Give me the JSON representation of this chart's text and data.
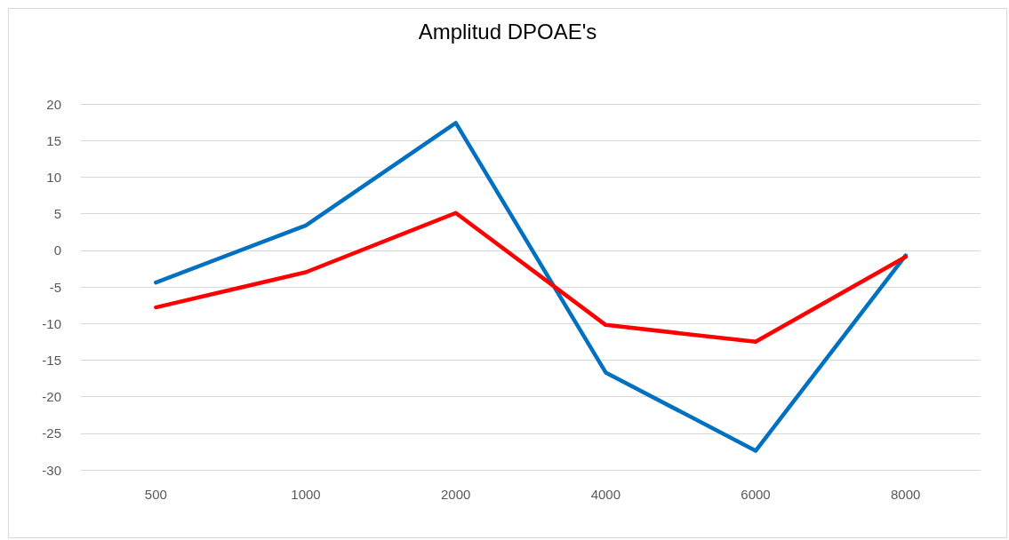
{
  "chart_data": {
    "type": "line",
    "title": "Amplitud DPOAE's",
    "categories": [
      "500",
      "1000",
      "2000",
      "4000",
      "6000",
      "8000"
    ],
    "series": [
      {
        "color": "#0070c0",
        "values": [
          -4.4,
          3.4,
          17.4,
          -16.7,
          -27.4,
          -0.7
        ]
      },
      {
        "color": "#ff0000",
        "values": [
          -7.8,
          -3.0,
          5.1,
          -10.2,
          -12.5,
          -0.9
        ]
      }
    ],
    "ylim": [
      -30,
      20
    ],
    "yticks": [
      -30,
      -25,
      -20,
      -15,
      -10,
      -5,
      0,
      5,
      10,
      15,
      20
    ],
    "grid": "y",
    "marker": "none",
    "line_style": "solid"
  }
}
